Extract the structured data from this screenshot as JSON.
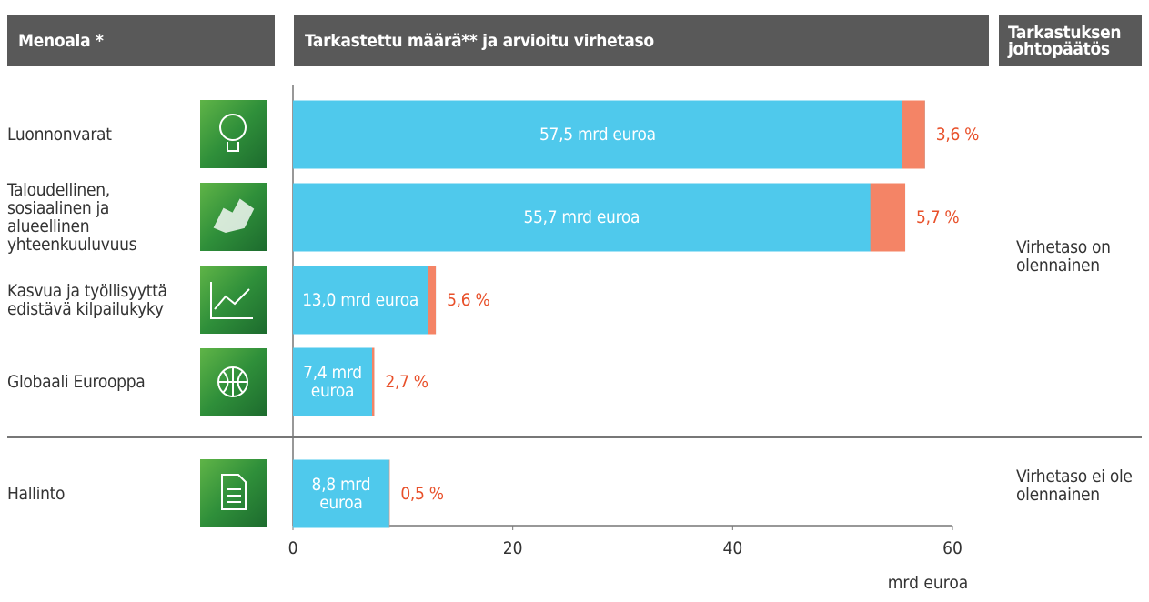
{
  "headers": [
    "Menoala *",
    "Tarkastettu määrä** ja arvioitu virhetaso",
    "Tarkastuksen johtopäätös"
  ],
  "chart_data": {
    "type": "bar",
    "orientation": "horizontal",
    "categories": [
      "Luonnonvarat",
      "Taloudellinen, sosiaalinen ja alueellinen yhteenkuuluvuus",
      "Kasvua ja työllisyyttä edistävä kilpailukyky",
      "Globaali Eurooppa",
      "Hallinto"
    ],
    "values": [
      57.5,
      55.7,
      13.0,
      7.4,
      8.8
    ],
    "value_labels": [
      "57,5 mrd euroa",
      "55,7 mrd euroa",
      "13,0 mrd euroa",
      "7,4 mrd euroa",
      "8,8 mrd euroa"
    ],
    "error_rates": [
      3.6,
      5.7,
      5.6,
      2.7,
      0.5
    ],
    "error_rate_labels": [
      "3,6 %",
      "5,7 %",
      "5,6 %",
      "2,7 %",
      "0,5 %"
    ],
    "color": "#4fc9ec",
    "error_color": "#f48466",
    "xlim": [
      0,
      60
    ],
    "xticks": [
      0,
      20,
      40,
      60
    ],
    "xlabel": "mrd euroa",
    "conclusions": [
      "Virhetaso on olennainen",
      "Virhetaso ei ole olennainen"
    ]
  }
}
